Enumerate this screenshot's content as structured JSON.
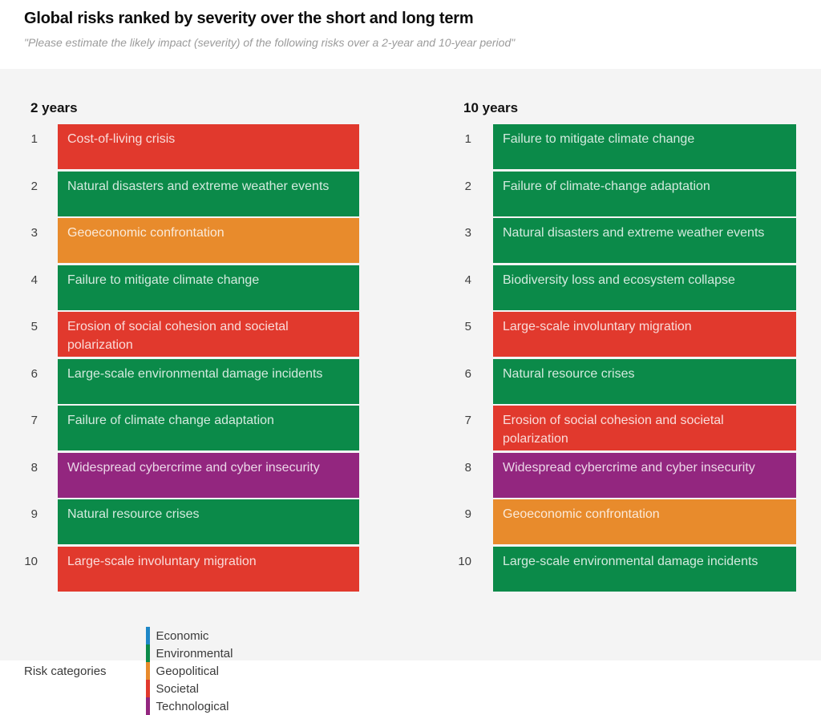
{
  "chart_data": {
    "type": "table",
    "title": "Global risks ranked by severity over the short and long term",
    "subtitle": "\"Please estimate the likely impact (severity) of the following risks over a 2-year and 10-year period\"",
    "category_colors": {
      "Economic": "#1e87c7",
      "Environmental": "#0b8a49",
      "Geopolitical": "#e88b2c",
      "Societal": "#e1392d",
      "Technological": "#93267f"
    },
    "legend": {
      "label": "Risk categories",
      "categories": [
        "Economic",
        "Environmental",
        "Geopolitical",
        "Societal",
        "Technological"
      ]
    },
    "columns": [
      {
        "period": "2 years",
        "ranking": [
          {
            "rank": 1,
            "risk": "Cost-of-living crisis",
            "category": "Societal"
          },
          {
            "rank": 2,
            "risk": "Natural disasters and extreme weather events",
            "category": "Environmental"
          },
          {
            "rank": 3,
            "risk": "Geoeconomic confrontation",
            "category": "Geopolitical"
          },
          {
            "rank": 4,
            "risk": "Failure to mitigate climate change",
            "category": "Environmental"
          },
          {
            "rank": 5,
            "risk": "Erosion of social cohesion and societal polarization",
            "category": "Societal"
          },
          {
            "rank": 6,
            "risk": "Large-scale environmental damage incidents",
            "category": "Environmental"
          },
          {
            "rank": 7,
            "risk": "Failure of climate change adaptation",
            "category": "Environmental"
          },
          {
            "rank": 8,
            "risk": "Widespread cybercrime and cyber insecurity",
            "category": "Technological"
          },
          {
            "rank": 9,
            "risk": "Natural resource crises",
            "category": "Environmental"
          },
          {
            "rank": 10,
            "risk": "Large-scale involuntary migration",
            "category": "Societal"
          }
        ]
      },
      {
        "period": "10 years",
        "ranking": [
          {
            "rank": 1,
            "risk": "Failure to mitigate climate change",
            "category": "Environmental"
          },
          {
            "rank": 2,
            "risk": "Failure of climate-change adaptation",
            "category": "Environmental"
          },
          {
            "rank": 3,
            "risk": "Natural disasters and extreme weather events",
            "category": "Environmental"
          },
          {
            "rank": 4,
            "risk": "Biodiversity loss and ecosystem collapse",
            "category": "Environmental"
          },
          {
            "rank": 5,
            "risk": "Large-scale involuntary migration",
            "category": "Societal"
          },
          {
            "rank": 6,
            "risk": "Natural resource crises",
            "category": "Environmental"
          },
          {
            "rank": 7,
            "risk": "Erosion of social cohesion and societal polarization",
            "category": "Societal"
          },
          {
            "rank": 8,
            "risk": "Widespread cybercrime and cyber insecurity",
            "category": "Technological"
          },
          {
            "rank": 9,
            "risk": "Geoeconomic confrontation",
            "category": "Geopolitical"
          },
          {
            "rank": 10,
            "risk": "Large-scale environmental damage incidents",
            "category": "Environmental"
          }
        ]
      }
    ]
  }
}
